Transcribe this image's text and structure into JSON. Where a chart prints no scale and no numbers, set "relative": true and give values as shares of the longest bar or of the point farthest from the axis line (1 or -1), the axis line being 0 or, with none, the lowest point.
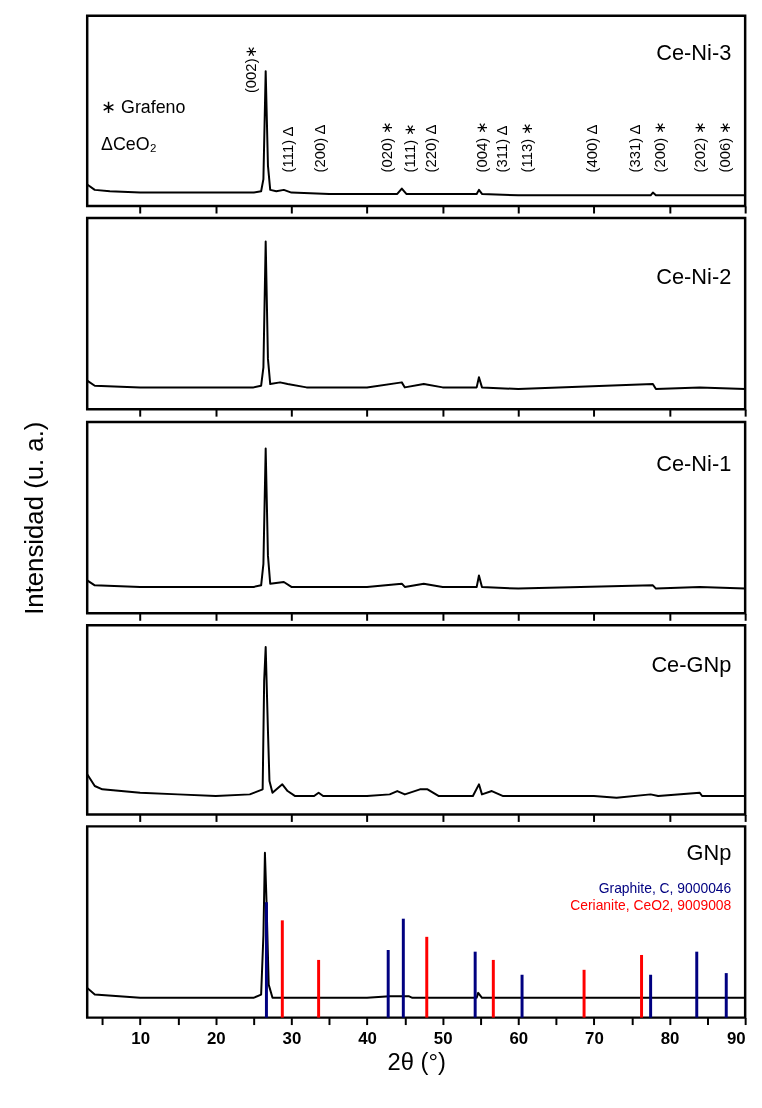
{
  "chart_data": [
    {
      "type": "line",
      "relative": true,
      "xlim": [
        3,
        90
      ],
      "tick_labels": false,
      "grid": false,
      "xticks": [
        10,
        20,
        30,
        40,
        50,
        60,
        70,
        80,
        90
      ],
      "series": [
        {
          "name": "Ce-Ni-3",
          "color": "#000000",
          "x": [
            3,
            4,
            6,
            10,
            20,
            25,
            26,
            26.3,
            26.6,
            26.9,
            27.2,
            28,
            29,
            30,
            35,
            40,
            44,
            44.6,
            45.2,
            50,
            54.5,
            54.8,
            55.2,
            60,
            70,
            77.5,
            77.8,
            78.2,
            85,
            90
          ],
          "values": [
            0.16,
            0.12,
            0.11,
            0.1,
            0.1,
            0.1,
            0.11,
            0.2,
            1.0,
            0.3,
            0.12,
            0.11,
            0.12,
            0.1,
            0.09,
            0.09,
            0.09,
            0.13,
            0.09,
            0.09,
            0.09,
            0.12,
            0.09,
            0.08,
            0.08,
            0.08,
            0.1,
            0.08,
            0.08,
            0.08
          ]
        }
      ],
      "annotations": [
        "∗ Grafeno",
        "ΔCeO₂",
        "(002)∗",
        "(111) Δ",
        "(200) Δ",
        "(020) ∗",
        "(111) ∗",
        "(220) Δ",
        "(004) ∗",
        "(311) Δ",
        "(113) ∗",
        "(400) Δ",
        "(331) Δ",
        "(200) ∗",
        "(202) ∗",
        "(006) ∗"
      ]
    },
    {
      "type": "line",
      "relative": true,
      "xlim": [
        3,
        90
      ],
      "tick_labels": false,
      "grid": false,
      "xticks": [
        10,
        20,
        30,
        40,
        50,
        60,
        70,
        80,
        90
      ],
      "series": [
        {
          "name": "Ce-Ni-2",
          "color": "#000000",
          "x": [
            3,
            4,
            10,
            20,
            25,
            26,
            26.3,
            26.6,
            26.9,
            27.2,
            28.5,
            29.5,
            32,
            40,
            44.6,
            45,
            47.5,
            50,
            54.5,
            54.8,
            55.2,
            60,
            77.8,
            78.2,
            84,
            90
          ],
          "values": [
            0.17,
            0.14,
            0.13,
            0.13,
            0.13,
            0.14,
            0.25,
            1.0,
            0.3,
            0.15,
            0.16,
            0.15,
            0.13,
            0.13,
            0.16,
            0.13,
            0.15,
            0.13,
            0.13,
            0.19,
            0.13,
            0.12,
            0.15,
            0.12,
            0.13,
            0.12
          ]
        }
      ]
    },
    {
      "type": "line",
      "relative": true,
      "xlim": [
        3,
        90
      ],
      "tick_labels": false,
      "grid": false,
      "xticks": [
        10,
        20,
        30,
        40,
        50,
        60,
        70,
        80,
        90
      ],
      "ylabel": "Intensidad (u. a.)",
      "series": [
        {
          "name": "Ce-Ni-1",
          "color": "#000000",
          "x": [
            3,
            4,
            10,
            20,
            25,
            26,
            26.3,
            26.6,
            26.9,
            27.2,
            29,
            30,
            40,
            44.6,
            45,
            47.5,
            50,
            54.5,
            54.8,
            55.2,
            60,
            77.8,
            78.2,
            84,
            90
          ],
          "values": [
            0.2,
            0.17,
            0.16,
            0.16,
            0.16,
            0.17,
            0.3,
            1.0,
            0.35,
            0.18,
            0.19,
            0.16,
            0.16,
            0.18,
            0.16,
            0.18,
            0.16,
            0.16,
            0.23,
            0.16,
            0.15,
            0.17,
            0.15,
            0.16,
            0.15
          ]
        }
      ]
    },
    {
      "type": "line",
      "relative": true,
      "xlim": [
        3,
        90
      ],
      "tick_labels": false,
      "grid": false,
      "xticks": [
        10,
        20,
        30,
        40,
        50,
        60,
        70,
        80,
        90
      ],
      "series": [
        {
          "name": "Ce-GNp",
          "color": "#000000",
          "x": [
            3,
            4,
            5,
            10,
            15,
            20,
            24.5,
            26.2,
            26.4,
            26.6,
            26.9,
            27.1,
            27.5,
            28.8,
            29.5,
            30.5,
            33,
            33.6,
            34.2,
            40,
            43,
            44,
            45,
            47,
            48,
            49.5,
            54,
            54.8,
            55.2,
            56.5,
            58,
            70,
            73,
            77.5,
            78.5,
            84,
            84.3,
            90
          ],
          "values": [
            0.24,
            0.17,
            0.15,
            0.13,
            0.12,
            0.11,
            0.12,
            0.15,
            0.8,
            1.0,
            0.5,
            0.2,
            0.13,
            0.18,
            0.14,
            0.11,
            0.11,
            0.13,
            0.11,
            0.11,
            0.12,
            0.14,
            0.12,
            0.15,
            0.15,
            0.11,
            0.11,
            0.18,
            0.12,
            0.14,
            0.11,
            0.11,
            0.1,
            0.12,
            0.11,
            0.13,
            0.11,
            0.11
          ]
        }
      ]
    },
    {
      "type": "line",
      "relative": true,
      "xlim": [
        3,
        90
      ],
      "tick_labels": "x",
      "grid": false,
      "xlabel": "2θ (°)",
      "xticks": [
        {
          "value": 5,
          "label": null
        },
        10,
        {
          "value": 15,
          "label": null
        },
        20,
        {
          "value": 25,
          "label": null
        },
        30,
        {
          "value": 35,
          "label": null
        },
        40,
        {
          "value": 45,
          "label": null
        },
        50,
        {
          "value": 55,
          "label": null
        },
        60,
        {
          "value": 65,
          "label": null
        },
        70,
        {
          "value": 75,
          "label": null
        },
        80,
        {
          "value": 85,
          "label": null
        },
        90
      ],
      "series": [
        {
          "name": "GNp",
          "color": "#000000",
          "x": [
            3,
            4,
            10,
            20,
            25,
            26,
            26.3,
            26.5,
            26.7,
            27.0,
            27.5,
            40,
            43,
            45.5,
            46,
            54.5,
            54.7,
            55.2,
            90
          ],
          "values": [
            0.18,
            0.14,
            0.12,
            0.12,
            0.12,
            0.14,
            0.5,
            1.0,
            0.72,
            0.2,
            0.12,
            0.12,
            0.13,
            0.13,
            0.12,
            0.12,
            0.15,
            0.12,
            0.12
          ]
        },
        {
          "name": "Graphite, C, 9000046",
          "type": "bar",
          "color": "#000080",
          "x": [
            26.7,
            42.8,
            44.8,
            54.3,
            60.5,
            77.5,
            83.6,
            87.5
          ],
          "values": [
            0.7,
            0.41,
            0.6,
            0.4,
            0.26,
            0.26,
            0.4,
            0.27
          ]
        },
        {
          "name": "Cerianite, CeO2, 9009008",
          "type": "bar",
          "color": "#ff0000",
          "x": [
            28.8,
            33.6,
            47.9,
            56.7,
            68.7,
            76.3
          ],
          "values": [
            0.59,
            0.35,
            0.49,
            0.35,
            0.29,
            0.38
          ]
        }
      ]
    }
  ]
}
